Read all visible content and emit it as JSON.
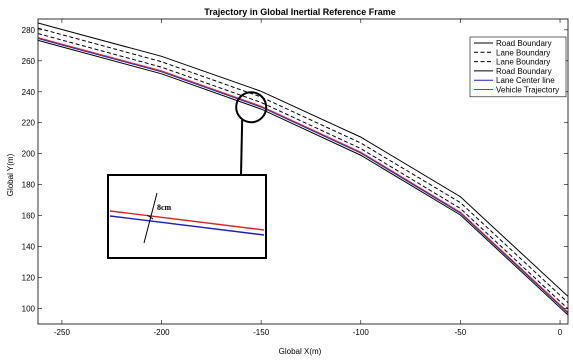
{
  "chart_data": {
    "type": "line",
    "title": "Trajectory in Global Inertial Reference Frame",
    "xlabel": "Global X(m)",
    "ylabel": "Global Y(m)",
    "xlim": [
      -262,
      4
    ],
    "ylim": [
      90,
      287
    ],
    "x_ticks": [
      -250,
      -200,
      -150,
      -100,
      -50,
      0
    ],
    "y_ticks": [
      100,
      120,
      140,
      160,
      180,
      200,
      220,
      240,
      260,
      280
    ],
    "grid": false,
    "legend_position": "top-right",
    "series": [
      {
        "name": "Road Boundary",
        "color": "#000000",
        "dash": "solid",
        "x": [
          -262,
          -250,
          -200,
          -150,
          -100,
          -50,
          4
        ],
        "y": [
          284.4,
          280.2,
          262.9,
          240.3,
          210.7,
          172.2,
          107.8
        ]
      },
      {
        "name": "Lane Boundary",
        "color": "#000000",
        "dash": "dashed",
        "x": [
          -262,
          -250,
          -200,
          -150,
          -100,
          -50,
          4
        ],
        "y": [
          281.1,
          276.9,
          259.4,
          236.6,
          206.9,
          168.4,
          103.8
        ]
      },
      {
        "name": "Lane Boundary",
        "color": "#000000",
        "dash": "dashed",
        "x": [
          -262,
          -250,
          -200,
          -150,
          -100,
          -50,
          4
        ],
        "y": [
          277.6,
          273.4,
          255.9,
          233.1,
          203.3,
          164.6,
          99.8
        ]
      },
      {
        "name": "Road Boundary",
        "color": "#000000",
        "dash": "solid",
        "x": [
          -262,
          -250,
          -200,
          -150,
          -100,
          -50,
          4
        ],
        "y": [
          273.2,
          269.0,
          251.6,
          228.8,
          199.0,
          160.4,
          95.8
        ]
      },
      {
        "name": "Lane Center line",
        "color": "#1f1fbf",
        "dash": "solid",
        "x": [
          -262,
          -250,
          -200,
          -150,
          -100,
          -50,
          4
        ],
        "y": [
          274.4,
          270.2,
          252.9,
          230.1,
          200.4,
          161.6,
          97.0
        ]
      },
      {
        "name": "Vehicle Trajectory",
        "color": "#d62728",
        "dash": "solid",
        "x": [
          -262,
          -250,
          -200,
          -150,
          -100,
          -50,
          4
        ],
        "y": [
          275.0,
          270.8,
          253.5,
          230.7,
          201.0,
          162.2,
          97.6
        ]
      }
    ],
    "annotations": [
      {
        "type": "zoom-inset",
        "label": "8cm",
        "focus_x": -155,
        "focus_y": 230
      }
    ]
  }
}
